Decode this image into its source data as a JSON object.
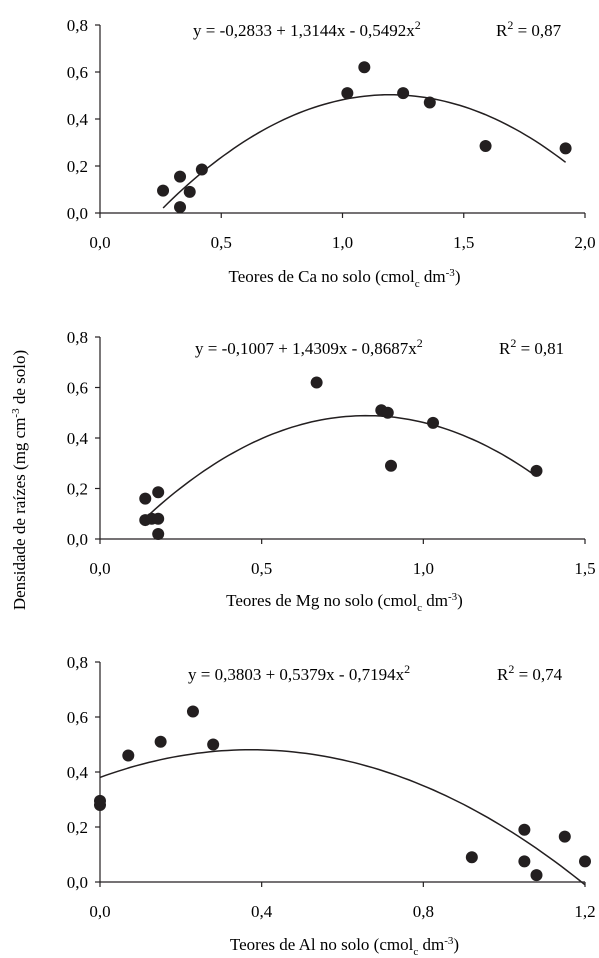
{
  "y_axis_label": {
    "main": "Densidade de raízes (mg cm",
    "sup": "-3",
    "end": " de solo)"
  },
  "chart_data": [
    {
      "type": "scatter",
      "xlabel": {
        "main": "Teores de Ca no solo (cmol",
        "sub": "c",
        "mid": " dm",
        "sup": "-3",
        "end": ")"
      },
      "equation": {
        "main": "y = -0,2833 + 1,3144x - 0,5492x",
        "sup": "2"
      },
      "r2": {
        "main": "R",
        "sup": "2",
        "end": " = 0,87"
      },
      "xlim": [
        0,
        2
      ],
      "ylim": [
        0,
        0.8
      ],
      "xticks": [
        "0,0",
        "0,5",
        "1,0",
        "1,5",
        "2,0"
      ],
      "yticks": [
        "0,0",
        "0,2",
        "0,4",
        "0,6",
        "0,8"
      ],
      "fit": {
        "a": -0.2833,
        "b": 1.3144,
        "c": -0.5492,
        "x_range": [
          0.26,
          1.92
        ]
      },
      "points": [
        [
          0.26,
          0.095
        ],
        [
          0.33,
          0.155
        ],
        [
          0.33,
          0.025
        ],
        [
          0.37,
          0.09
        ],
        [
          0.42,
          0.185
        ],
        [
          1.02,
          0.51
        ],
        [
          1.09,
          0.62
        ],
        [
          1.25,
          0.51
        ],
        [
          1.36,
          0.47
        ],
        [
          1.59,
          0.285
        ],
        [
          1.92,
          0.275
        ]
      ]
    },
    {
      "type": "scatter",
      "xlabel": {
        "main": "Teores de Mg no solo (cmol",
        "sub": "c",
        "mid": " dm",
        "sup": "-3",
        "end": ")"
      },
      "equation": {
        "main": "y = -0,1007 + 1,4309x - 0,8687x",
        "sup": "2"
      },
      "r2": {
        "main": "R",
        "sup": "2",
        "end": " = 0,81"
      },
      "xlim": [
        0,
        1.5
      ],
      "ylim": [
        0,
        0.8
      ],
      "xticks": [
        "0,0",
        "0,5",
        "1,0",
        "1,5"
      ],
      "yticks": [
        "0,0",
        "0,2",
        "0,4",
        "0,6",
        "0,8"
      ],
      "fit": {
        "a": -0.1007,
        "b": 1.4309,
        "c": -0.8687,
        "x_range": [
          0.14,
          1.35
        ]
      },
      "points": [
        [
          0.14,
          0.075
        ],
        [
          0.14,
          0.16
        ],
        [
          0.16,
          0.08
        ],
        [
          0.18,
          0.185
        ],
        [
          0.18,
          0.08
        ],
        [
          0.18,
          0.02
        ],
        [
          0.67,
          0.62
        ],
        [
          0.87,
          0.51
        ],
        [
          0.89,
          0.5
        ],
        [
          0.9,
          0.29
        ],
        [
          1.03,
          0.46
        ],
        [
          1.35,
          0.27
        ]
      ]
    },
    {
      "type": "scatter",
      "xlabel": {
        "main": "Teores de Al no solo (cmol",
        "sub": "c",
        "mid": " dm",
        "sup": "-3",
        "end": ")"
      },
      "equation": {
        "main": "y = 0,3803 + 0,5379x - 0,7194x",
        "sup": "2"
      },
      "r2": {
        "main": "R",
        "sup": "2",
        "end": " = 0,74"
      },
      "xlim": [
        0,
        1.2
      ],
      "ylim": [
        0,
        0.8
      ],
      "xticks": [
        "0,0",
        "0,4",
        "0,8",
        "1,2"
      ],
      "yticks": [
        "0,0",
        "0,2",
        "0,4",
        "0,6",
        "0,8"
      ],
      "fit": {
        "a": 0.3803,
        "b": 0.5379,
        "c": -0.7194,
        "x_range": [
          0,
          1.2
        ]
      },
      "points": [
        [
          0.0,
          0.28
        ],
        [
          0.0,
          0.295
        ],
        [
          0.07,
          0.46
        ],
        [
          0.15,
          0.51
        ],
        [
          0.23,
          0.62
        ],
        [
          0.28,
          0.5
        ],
        [
          0.92,
          0.09
        ],
        [
          1.05,
          0.19
        ],
        [
          1.05,
          0.075
        ],
        [
          1.08,
          0.025
        ],
        [
          1.15,
          0.165
        ],
        [
          1.2,
          0.075
        ]
      ]
    }
  ]
}
